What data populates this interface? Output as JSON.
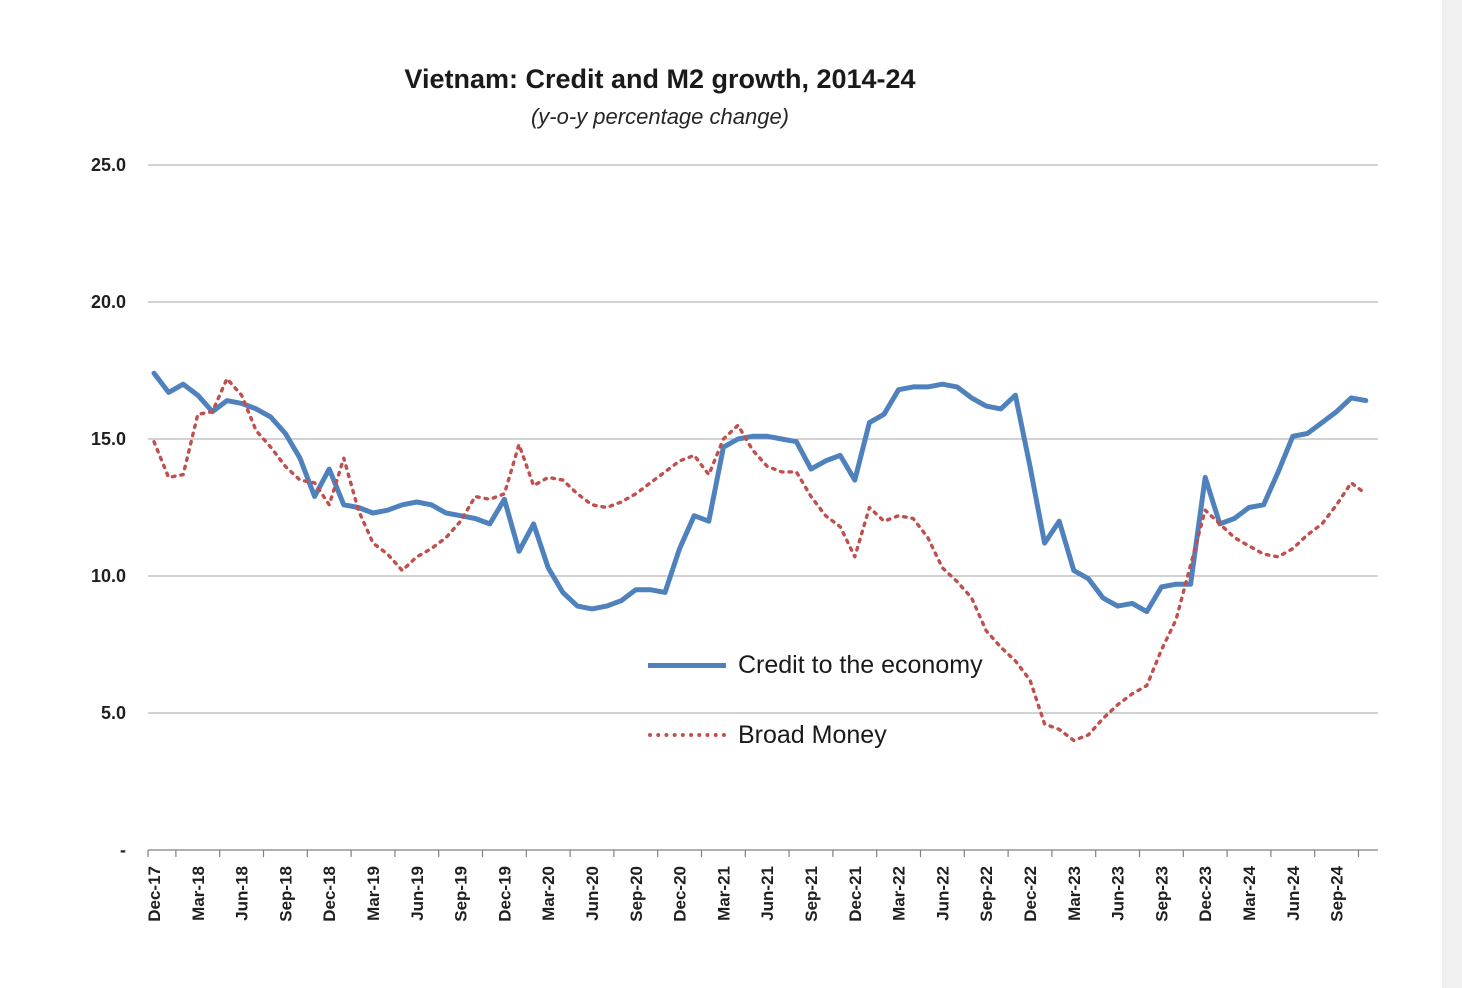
{
  "chart_data": {
    "type": "line",
    "title": "Vietnam: Credit and M2 growth, 2014-24",
    "subtitle": "(y-o-y percentage change)",
    "xlabel": "",
    "ylabel": "",
    "ylim": [
      0,
      25
    ],
    "grid": "horizontal",
    "legend_position": "inside-center-right",
    "grid_color": "#a6a6a6",
    "axis_color": "#808080",
    "text_color": "#1f1f1f",
    "yticks": [
      {
        "value": 0,
        "label": "-"
      },
      {
        "value": 5,
        "label": "5.0"
      },
      {
        "value": 10,
        "label": "10.0"
      },
      {
        "value": 15,
        "label": "15.0"
      },
      {
        "value": 20,
        "label": "20.0"
      },
      {
        "value": 25,
        "label": "25.0"
      }
    ],
    "x_tick_interval_months": 3,
    "x_tick_labels": [
      "Dec-17",
      "Mar-18",
      "Jun-18",
      "Sep-18",
      "Dec-18",
      "Mar-19",
      "Jun-19",
      "Sep-19",
      "Dec-19",
      "Mar-20",
      "Jun-20",
      "Sep-20",
      "Dec-20",
      "Mar-21",
      "Jun-21",
      "Sep-21",
      "Dec-21",
      "Mar-22",
      "Jun-22",
      "Sep-22",
      "Dec-22",
      "Mar-23",
      "Jun-23",
      "Sep-23",
      "Dec-23",
      "Mar-24",
      "Jun-24",
      "Sep-24"
    ],
    "x": [
      "Dec-17",
      "Jan-18",
      "Feb-18",
      "Mar-18",
      "Apr-18",
      "May-18",
      "Jun-18",
      "Jul-18",
      "Aug-18",
      "Sep-18",
      "Oct-18",
      "Nov-18",
      "Dec-18",
      "Jan-19",
      "Feb-19",
      "Mar-19",
      "Apr-19",
      "May-19",
      "Jun-19",
      "Jul-19",
      "Aug-19",
      "Sep-19",
      "Oct-19",
      "Nov-19",
      "Dec-19",
      "Jan-20",
      "Feb-20",
      "Mar-20",
      "Apr-20",
      "May-20",
      "Jun-20",
      "Jul-20",
      "Aug-20",
      "Sep-20",
      "Oct-20",
      "Nov-20",
      "Dec-20",
      "Jan-21",
      "Feb-21",
      "Mar-21",
      "Apr-21",
      "May-21",
      "Jun-21",
      "Jul-21",
      "Aug-21",
      "Sep-21",
      "Oct-21",
      "Nov-21",
      "Dec-21",
      "Jan-22",
      "Feb-22",
      "Mar-22",
      "Apr-22",
      "May-22",
      "Jun-22",
      "Jul-22",
      "Aug-22",
      "Sep-22",
      "Oct-22",
      "Nov-22",
      "Dec-22",
      "Jan-23",
      "Feb-23",
      "Mar-23",
      "Apr-23",
      "May-23",
      "Jun-23",
      "Jul-23",
      "Aug-23",
      "Sep-23",
      "Oct-23",
      "Nov-23",
      "Dec-23",
      "Jan-24",
      "Feb-24",
      "Mar-24",
      "Apr-24",
      "May-24",
      "Jun-24",
      "Jul-24",
      "Aug-24",
      "Sep-24",
      "Oct-24",
      "Nov-24"
    ],
    "series": [
      {
        "name": "Credit to the economy",
        "color": "#4f81bd",
        "style": "solid",
        "values": [
          17.4,
          16.7,
          17.0,
          16.6,
          16.0,
          16.4,
          16.3,
          16.1,
          15.8,
          15.2,
          14.3,
          12.9,
          13.9,
          12.6,
          12.5,
          12.3,
          12.4,
          12.6,
          12.7,
          12.6,
          12.3,
          12.2,
          12.1,
          11.9,
          12.8,
          10.9,
          11.9,
          10.3,
          9.4,
          8.9,
          8.8,
          8.9,
          9.1,
          9.5,
          9.5,
          9.4,
          11.0,
          12.2,
          12.0,
          14.7,
          15.0,
          15.1,
          15.1,
          15.0,
          14.9,
          13.9,
          14.2,
          14.4,
          13.5,
          15.6,
          15.9,
          16.8,
          16.9,
          16.9,
          17.0,
          16.9,
          16.5,
          16.2,
          16.1,
          16.6,
          14.0,
          11.2,
          12.0,
          10.2,
          9.9,
          9.2,
          8.9,
          9.0,
          8.7,
          9.6,
          9.7,
          9.7,
          13.6,
          11.9,
          12.1,
          12.5,
          12.6,
          13.8,
          15.1,
          15.2,
          15.6,
          16.0,
          16.5,
          16.4
        ]
      },
      {
        "name": "Broad Money",
        "color": "#c0504d",
        "style": "dotted",
        "values": [
          14.9,
          13.6,
          13.7,
          15.9,
          16.0,
          17.2,
          16.6,
          15.3,
          14.7,
          14.0,
          13.5,
          13.4,
          12.6,
          14.3,
          12.4,
          11.2,
          10.8,
          10.2,
          10.7,
          11.0,
          11.4,
          12.0,
          12.9,
          12.8,
          13.0,
          14.8,
          13.3,
          13.6,
          13.5,
          13.0,
          12.6,
          12.5,
          12.7,
          13.0,
          13.4,
          13.8,
          14.2,
          14.4,
          13.7,
          15.0,
          15.5,
          14.6,
          14.0,
          13.8,
          13.8,
          12.9,
          12.2,
          11.8,
          10.7,
          12.5,
          12.0,
          12.2,
          12.1,
          11.4,
          10.3,
          9.8,
          9.2,
          8.0,
          7.4,
          6.9,
          6.2,
          4.6,
          4.4,
          4.0,
          4.2,
          4.8,
          5.3,
          5.7,
          6.0,
          7.3,
          8.4,
          10.4,
          12.4,
          11.9,
          11.4,
          11.1,
          10.8,
          10.7,
          11.0,
          11.5,
          11.9,
          12.6,
          13.4,
          13.0
        ]
      }
    ]
  }
}
